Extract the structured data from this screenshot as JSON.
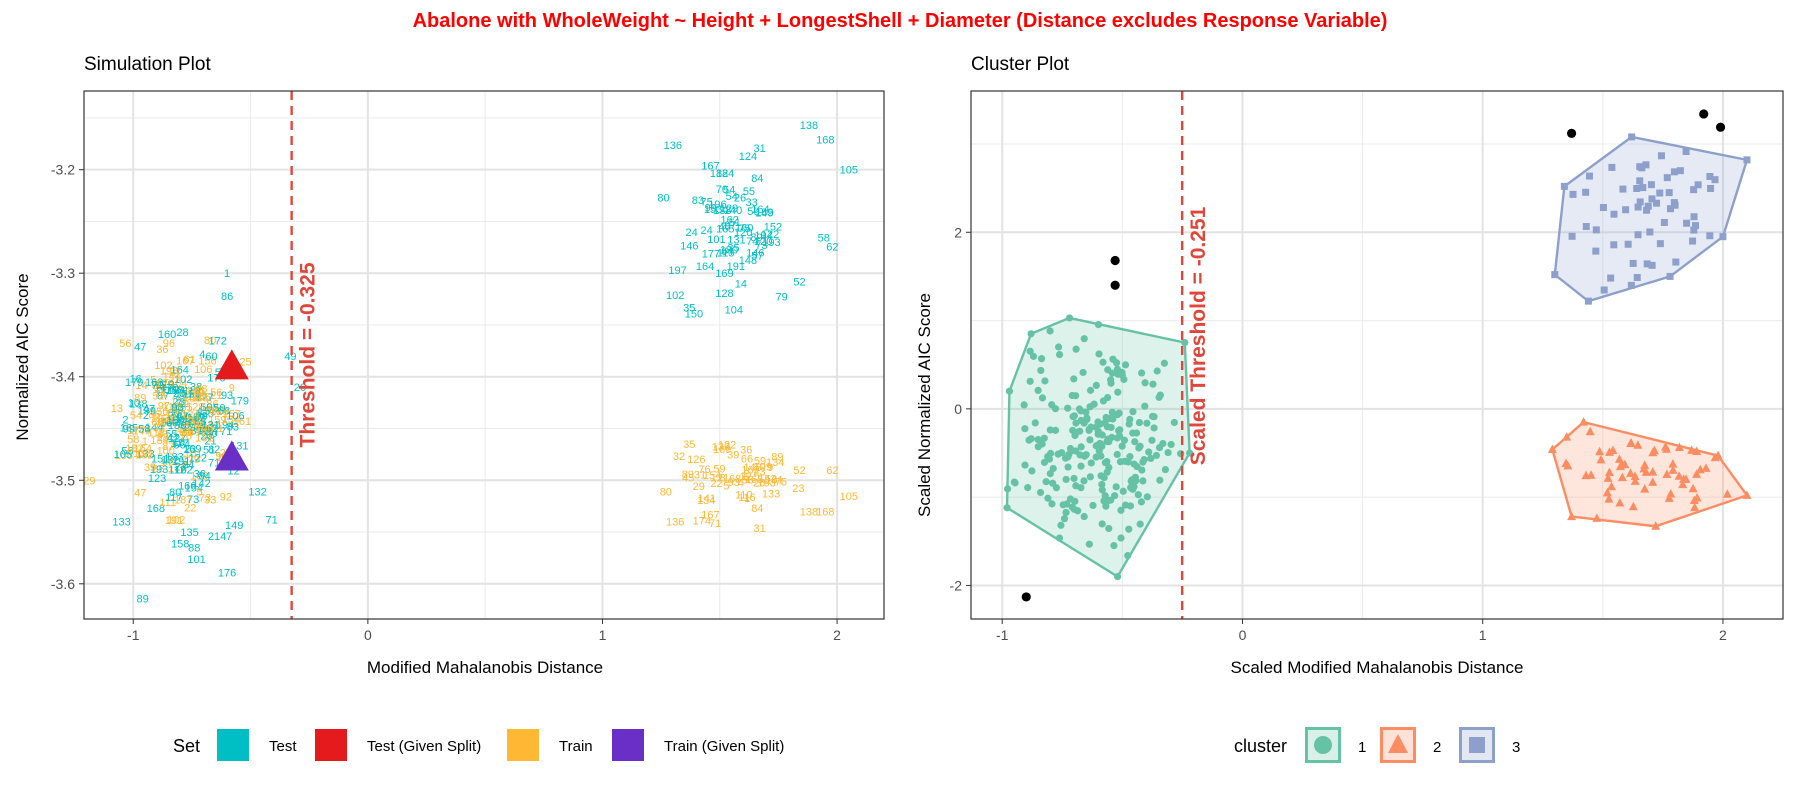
{
  "title": "Abalone with WholeWeight ~ Height + LongestShell + Diameter (Distance excludes Response Variable)",
  "colors": {
    "title": "#ff0000",
    "test": "#00bfc4",
    "test_given": "#e41a1c",
    "train": "#ffb833",
    "train_given": "#6a2fc6",
    "threshold": "#e0473a",
    "cluster1": "#66c2a5",
    "cluster2": "#fc8d62",
    "cluster3": "#8da0cb",
    "outlier": "#000000"
  },
  "chart_data": [
    {
      "type": "scatter",
      "title": "Simulation Plot",
      "xlabel": "Modified Mahalanobis Distance",
      "ylabel": "Normalized AIC Score",
      "xlim": [
        -1.21,
        2.2
      ],
      "ylim": [
        -3.634,
        -3.124
      ],
      "x_ticks": [
        -1,
        0,
        1,
        2
      ],
      "y_ticks": [
        -3.2,
        -3.3,
        -3.4,
        -3.5,
        -3.6
      ],
      "grid": true,
      "threshold": {
        "x": -0.325,
        "label": "Threshold = -0.325"
      },
      "legend": {
        "position": "bottom",
        "title": "Set",
        "entries": [
          "Test",
          "Test (Given Split)",
          "Train",
          "Train (Given Split)"
        ]
      },
      "labeled_points": [
        {
          "label": "138",
          "x": 1.88,
          "y": -3.157,
          "set": "Test"
        },
        {
          "label": "168",
          "x": 1.95,
          "y": -3.171,
          "set": "Test"
        },
        {
          "label": "136",
          "x": 1.3,
          "y": -3.176,
          "set": "Test"
        },
        {
          "label": "31",
          "x": 1.67,
          "y": -3.179,
          "set": "Test"
        },
        {
          "label": "124",
          "x": 1.62,
          "y": -3.187,
          "set": "Test"
        },
        {
          "label": "105",
          "x": 2.05,
          "y": -3.2,
          "set": "Test"
        },
        {
          "label": "167",
          "x": 1.46,
          "y": -3.196,
          "set": "Test"
        },
        {
          "label": "84",
          "x": 1.66,
          "y": -3.208,
          "set": "Test"
        },
        {
          "label": "54",
          "x": 1.54,
          "y": -3.219,
          "set": "Test"
        },
        {
          "label": "80",
          "x": 1.26,
          "y": -3.227,
          "set": "Test"
        },
        {
          "label": "196",
          "x": 1.49,
          "y": -3.233,
          "set": "Test"
        },
        {
          "label": "183",
          "x": 1.69,
          "y": -3.241,
          "set": "Test"
        },
        {
          "label": "24",
          "x": 1.38,
          "y": -3.26,
          "set": "Test"
        },
        {
          "label": "120",
          "x": 1.6,
          "y": -3.26,
          "set": "Test"
        },
        {
          "label": "146",
          "x": 1.37,
          "y": -3.273,
          "set": "Test"
        },
        {
          "label": "193",
          "x": 1.72,
          "y": -3.27,
          "set": "Test"
        },
        {
          "label": "62",
          "x": 1.98,
          "y": -3.274,
          "set": "Test"
        },
        {
          "label": "148",
          "x": 1.62,
          "y": -3.287,
          "set": "Test"
        },
        {
          "label": "197",
          "x": 1.32,
          "y": -3.297,
          "set": "Test"
        },
        {
          "label": "169",
          "x": 1.52,
          "y": -3.3,
          "set": "Test"
        },
        {
          "label": "52",
          "x": 1.84,
          "y": -3.308,
          "set": "Test"
        },
        {
          "label": "14",
          "x": 1.59,
          "y": -3.31,
          "set": "Test"
        },
        {
          "label": "102",
          "x": 1.31,
          "y": -3.321,
          "set": "Test"
        },
        {
          "label": "128",
          "x": 1.52,
          "y": -3.319,
          "set": "Test"
        },
        {
          "label": "35",
          "x": 1.37,
          "y": -3.333,
          "set": "Test"
        },
        {
          "label": "150",
          "x": 1.39,
          "y": -3.339,
          "set": "Test"
        },
        {
          "label": "104",
          "x": 1.56,
          "y": -3.335,
          "set": "Test"
        },
        {
          "label": "1",
          "x": -0.6,
          "y": -3.3,
          "set": "Test"
        },
        {
          "label": "86",
          "x": -0.6,
          "y": -3.322,
          "set": "Test"
        },
        {
          "label": "28",
          "x": -0.79,
          "y": -3.357,
          "set": "Test"
        },
        {
          "label": "47",
          "x": -0.97,
          "y": -3.371,
          "set": "Test"
        },
        {
          "label": "172",
          "x": -0.64,
          "y": -3.365,
          "set": "Test"
        },
        {
          "label": "89",
          "x": -0.96,
          "y": -3.614,
          "set": "Test"
        },
        {
          "label": "176",
          "x": -0.6,
          "y": -3.589,
          "set": "Test"
        },
        {
          "label": "133",
          "x": -1.05,
          "y": -3.54,
          "set": "Test"
        },
        {
          "label": "88",
          "x": -0.74,
          "y": -3.565,
          "set": "Test"
        },
        {
          "label": "101",
          "x": -0.73,
          "y": -3.576,
          "set": "Test"
        },
        {
          "label": "158",
          "x": -0.8,
          "y": -3.561,
          "set": "Test"
        },
        {
          "label": "71",
          "x": -0.41,
          "y": -3.538,
          "set": "Test"
        },
        {
          "label": "132",
          "x": -0.47,
          "y": -3.511,
          "set": "Test"
        },
        {
          "label": "49",
          "x": -0.33,
          "y": -3.38,
          "set": "Test"
        },
        {
          "label": "26",
          "x": -0.29,
          "y": -3.41,
          "set": "Test"
        },
        {
          "label": "135",
          "x": -0.76,
          "y": -3.55,
          "set": "Test"
        },
        {
          "label": "2147",
          "x": -0.63,
          "y": -3.554,
          "set": "Test"
        },
        {
          "label": "149",
          "x": -0.57,
          "y": -3.543,
          "set": "Test"
        },
        {
          "label": "35",
          "x": 1.37,
          "y": -3.465,
          "set": "Train"
        },
        {
          "label": "169",
          "x": 1.51,
          "y": -3.47,
          "set": "Train"
        },
        {
          "label": "52",
          "x": 1.84,
          "y": -3.49,
          "set": "Train"
        },
        {
          "label": "62",
          "x": 1.98,
          "y": -3.49,
          "set": "Train"
        },
        {
          "label": "148",
          "x": 1.64,
          "y": -3.487,
          "set": "Train"
        },
        {
          "label": "193",
          "x": 1.7,
          "y": -3.502,
          "set": "Train"
        },
        {
          "label": "105",
          "x": 2.05,
          "y": -3.515,
          "set": "Train"
        },
        {
          "label": "80",
          "x": 1.27,
          "y": -3.511,
          "set": "Train"
        },
        {
          "label": "138",
          "x": 1.88,
          "y": -3.53,
          "set": "Train"
        },
        {
          "label": "168",
          "x": 1.95,
          "y": -3.53,
          "set": "Train"
        },
        {
          "label": "167",
          "x": 1.46,
          "y": -3.533,
          "set": "Train"
        },
        {
          "label": "136",
          "x": 1.31,
          "y": -3.54,
          "set": "Train"
        },
        {
          "label": "31",
          "x": 1.67,
          "y": -3.546,
          "set": "Train"
        },
        {
          "label": "84",
          "x": 1.66,
          "y": -3.527,
          "set": "Train"
        },
        {
          "label": "89",
          "x": -0.97,
          "y": -3.42,
          "set": "Train"
        },
        {
          "label": "47",
          "x": -0.97,
          "y": -3.512,
          "set": "Train"
        },
        {
          "label": "58",
          "x": -1.0,
          "y": -3.46,
          "set": "Train"
        },
        {
          "label": "13",
          "x": -1.07,
          "y": -3.43,
          "set": "Train"
        }
      ],
      "given_split_points": [
        {
          "set": "Test (Given Split)",
          "x": -0.58,
          "y": -3.39
        },
        {
          "set": "Train (Given Split)",
          "x": -0.58,
          "y": -3.478
        }
      ]
    },
    {
      "type": "scatter",
      "title": "Cluster Plot",
      "xlabel": "Scaled Modified Mahalanobis Distance",
      "ylabel": "Scaled Normalized AIC Score",
      "xlim": [
        -1.13,
        2.25
      ],
      "ylim": [
        -2.38,
        3.6
      ],
      "x_ticks": [
        -1,
        0,
        1,
        2
      ],
      "y_ticks": [
        2,
        0,
        -2
      ],
      "grid": true,
      "threshold": {
        "x": -0.251,
        "label": "Scaled Threshold = -0.251"
      },
      "legend": {
        "position": "bottom",
        "title": "cluster",
        "entries": [
          "1",
          "2",
          "3"
        ]
      },
      "clusters": [
        {
          "name": "1",
          "hull": [
            [
              -0.72,
              1.03
            ],
            [
              -0.24,
              0.75
            ],
            [
              -0.22,
              -0.5
            ],
            [
              -0.52,
              -1.9
            ],
            [
              -0.98,
              -1.12
            ],
            [
              -0.97,
              0.2
            ],
            [
              -0.88,
              0.85
            ]
          ]
        },
        {
          "name": "2",
          "hull": [
            [
              1.42,
              -0.15
            ],
            [
              1.98,
              -0.53
            ],
            [
              2.1,
              -0.98
            ],
            [
              1.72,
              -1.33
            ],
            [
              1.37,
              -1.22
            ],
            [
              1.29,
              -0.46
            ]
          ]
        },
        {
          "name": "3",
          "hull": [
            [
              1.34,
              2.52
            ],
            [
              1.62,
              3.08
            ],
            [
              2.1,
              2.82
            ],
            [
              2.0,
              1.95
            ],
            [
              1.78,
              1.5
            ],
            [
              1.44,
              1.22
            ],
            [
              1.3,
              1.52
            ]
          ]
        }
      ],
      "outliers": [
        [
          -0.53,
          1.68
        ],
        [
          -0.53,
          1.4
        ],
        [
          -0.9,
          -2.13
        ],
        [
          1.37,
          3.12
        ],
        [
          1.92,
          3.34
        ],
        [
          1.99,
          3.19
        ]
      ]
    }
  ]
}
